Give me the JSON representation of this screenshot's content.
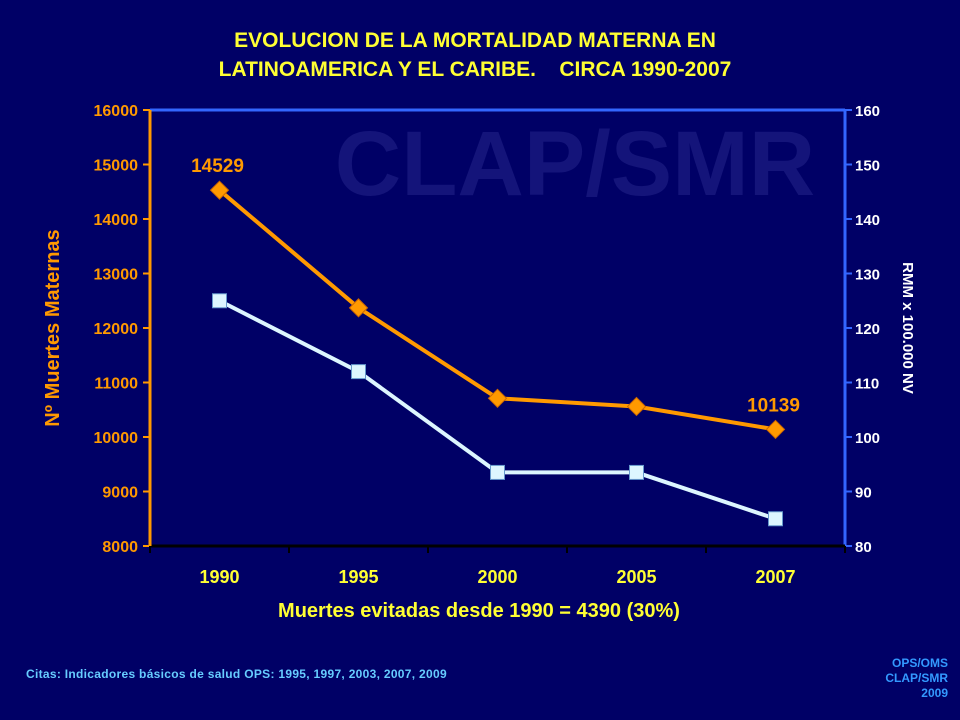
{
  "slide": {
    "title_line1": "EVOLUCION DE LA MORTALIDAD MATERNA EN",
    "title_line2": "LATINOAMERICA Y EL CARIBE.    CIRCA 1990-2007",
    "watermark": "CLAP/SMR",
    "summary": "Muertes evitadas desde 1990 = 4390 (30%)",
    "citation": "Citas: Indicadores básicos de salud OPS: 1995, 1997, 2003, 2007, 2009",
    "credit_line1": "OPS/OMS",
    "credit_line2": "CLAP/SMR",
    "credit_line3": "2009"
  },
  "colors": {
    "background": "#000066",
    "title": "#FFFF33",
    "deaths_series": "#FF9900",
    "ratio_series": "#DDF6FF",
    "axis_left": "#FF9900",
    "axis_right": "#3366FF",
    "watermark": "#14147A"
  },
  "chart_data": {
    "type": "line",
    "title": "EVOLUCION DE LA MORTALIDAD MATERNA EN LATINOAMERICA Y EL CARIBE. CIRCA 1990-2007",
    "categories": [
      "1990",
      "1995",
      "2000",
      "2005",
      "2007"
    ],
    "ylabel": "Nº Muertes Maternas",
    "ylabel_right": "RMM x 100.000 NV",
    "ylim": [
      8000,
      16000
    ],
    "yticks": [
      8000,
      9000,
      10000,
      11000,
      12000,
      13000,
      14000,
      15000,
      16000
    ],
    "ylim_right": [
      80,
      160
    ],
    "yticks_right": [
      80,
      90,
      100,
      110,
      120,
      130,
      140,
      150,
      160
    ],
    "grid": false,
    "legend": "none",
    "series": [
      {
        "axis": "left",
        "marker": "diamond",
        "values": [
          14529,
          12370,
          10710,
          10560,
          10139
        ]
      },
      {
        "axis": "right",
        "marker": "square",
        "values": [
          125,
          112,
          93.5,
          93.5,
          85
        ]
      }
    ],
    "data_labels": [
      {
        "series": 0,
        "index": 0,
        "text": "14529"
      },
      {
        "series": 0,
        "index": 4,
        "text": "10139"
      }
    ]
  }
}
